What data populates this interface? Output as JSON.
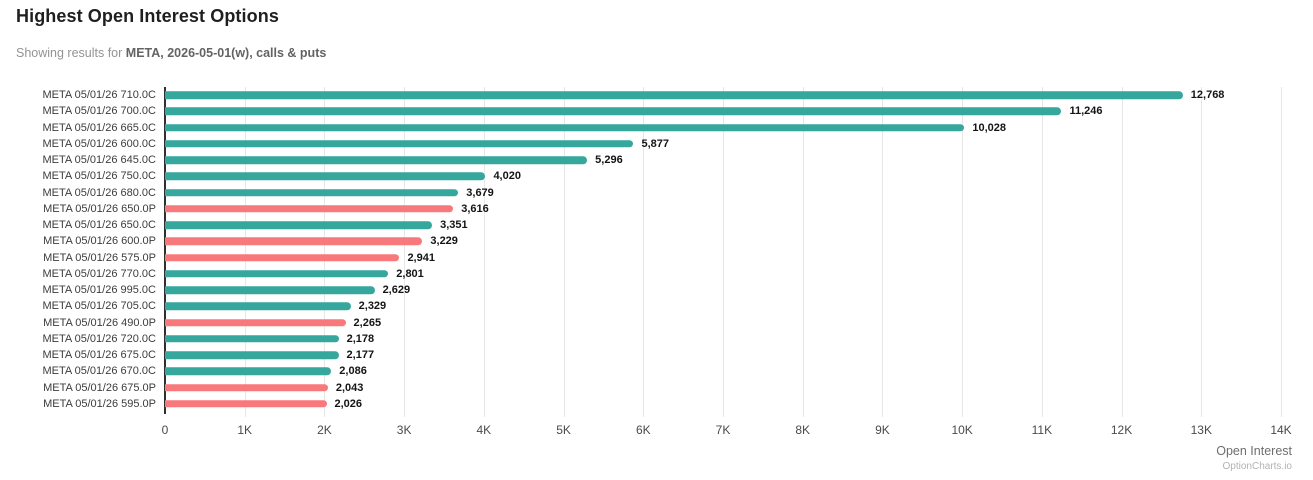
{
  "header": {
    "title": "Highest Open Interest Options",
    "subtitle_prefix": "Showing results for ",
    "subtitle_bold": "META, 2026-05-01(w), calls & puts"
  },
  "chart_data": {
    "type": "bar",
    "orientation": "horizontal",
    "title": "Highest Open Interest Options",
    "xlabel": "Open Interest",
    "ylabel": "",
    "xlim": [
      0,
      14000
    ],
    "grid": "vertical",
    "x_ticks": [
      "0",
      "1K",
      "2K",
      "3K",
      "4K",
      "5K",
      "6K",
      "7K",
      "8K",
      "9K",
      "10K",
      "11K",
      "12K",
      "13K",
      "14K"
    ],
    "categories": [
      "META 05/01/26 710.0C",
      "META 05/01/26 700.0C",
      "META 05/01/26 665.0C",
      "META 05/01/26 600.0C",
      "META 05/01/26 645.0C",
      "META 05/01/26 750.0C",
      "META 05/01/26 680.0C",
      "META 05/01/26 650.0P",
      "META 05/01/26 650.0C",
      "META 05/01/26 600.0P",
      "META 05/01/26 575.0P",
      "META 05/01/26 770.0C",
      "META 05/01/26 995.0C",
      "META 05/01/26 705.0C",
      "META 05/01/26 490.0P",
      "META 05/01/26 720.0C",
      "META 05/01/26 675.0C",
      "META 05/01/26 670.0C",
      "META 05/01/26 675.0P",
      "META 05/01/26 595.0P"
    ],
    "values": [
      12768,
      11246,
      10028,
      5877,
      5296,
      4020,
      3679,
      3616,
      3351,
      3229,
      2941,
      2801,
      2629,
      2329,
      2265,
      2178,
      2177,
      2086,
      2043,
      2026
    ],
    "value_labels": [
      "12,768",
      "11,246",
      "10,028",
      "5,877",
      "5,296",
      "4,020",
      "3,679",
      "3,616",
      "3,351",
      "3,229",
      "2,941",
      "2,801",
      "2,629",
      "2,329",
      "2,265",
      "2,178",
      "2,177",
      "2,086",
      "2,043",
      "2,026"
    ],
    "option_types": [
      "call",
      "call",
      "call",
      "call",
      "call",
      "call",
      "call",
      "put",
      "call",
      "put",
      "put",
      "call",
      "call",
      "call",
      "put",
      "call",
      "call",
      "call",
      "put",
      "put"
    ],
    "colors": {
      "call": "#35a79d",
      "put": "#f8797b"
    }
  },
  "footer": {
    "axis_title": "Open Interest",
    "credit": "OptionCharts.io"
  }
}
